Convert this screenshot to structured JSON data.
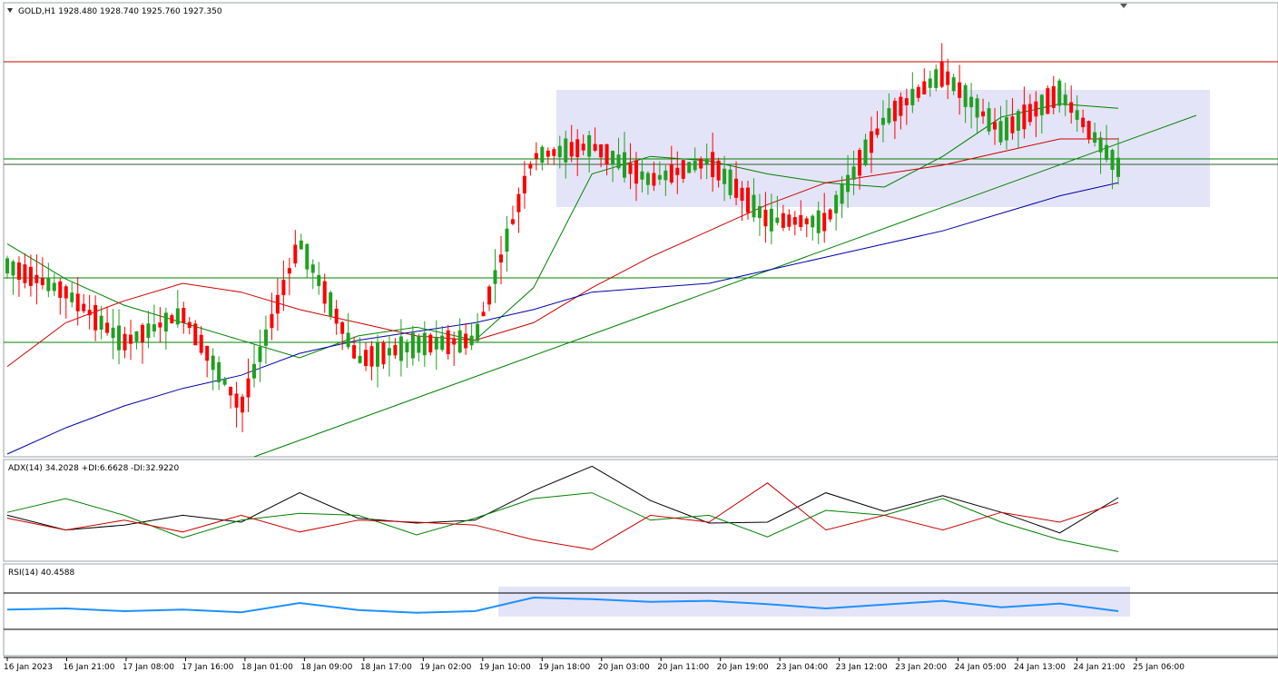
{
  "main_header": "GOLD,H1  1928.480 1928.740 1925.760 1927.350",
  "adx_header": "ADX(14) 34.2028 +DI:6.6628 -DI:32.9220",
  "rsi_header": "RSI(14) 40.4588",
  "time_labels": [
    "16 Jan 2023",
    "16 Jan 21:00",
    "17 Jan 08:00",
    "17 Jan 16:00",
    "18 Jan 01:00",
    "18 Jan 09:00",
    "18 Jan 17:00",
    "19 Jan 02:00",
    "19 Jan 10:00",
    "19 Jan 18:00",
    "20 Jan 03:00",
    "20 Jan 11:00",
    "20 Jan 19:00",
    "23 Jan 04:00",
    "23 Jan 12:00",
    "23 Jan 20:00",
    "24 Jan 05:00",
    "24 Jan 13:00",
    "24 Jan 21:00",
    "25 Jan 06:00"
  ],
  "colors": {
    "bull": "#20a020",
    "bear": "#ff0000",
    "ma_fast": "#008000",
    "ma_mid": "#cc0000",
    "ma_slow": "#0000aa",
    "zone_fill": "#e4e4f8",
    "resistance_line": "#cc0000",
    "support_line": "#008000",
    "trendline": "#008000",
    "adx_main": "#000000",
    "adx_plus_di": "#008000",
    "adx_minus_di": "#cc0000",
    "rsi_line": "#1e90ff"
  },
  "chart_data": [
    {
      "type": "candlestick",
      "symbol": "GOLD",
      "timeframe": "H1",
      "title": "GOLD,H1",
      "last_bar": {
        "open": 1928.48,
        "high": 1928.74,
        "low": 1925.76,
        "close": 1927.35
      },
      "x_categories": [
        "16 Jan 2023",
        "16 Jan 21:00",
        "17 Jan 08:00",
        "17 Jan 16:00",
        "18 Jan 01:00",
        "18 Jan 09:00",
        "18 Jan 17:00",
        "19 Jan 02:00",
        "19 Jan 10:00",
        "19 Jan 18:00",
        "20 Jan 03:00",
        "20 Jan 11:00",
        "20 Jan 19:00",
        "23 Jan 04:00",
        "23 Jan 12:00",
        "23 Jan 20:00",
        "24 Jan 05:00",
        "24 Jan 13:00",
        "24 Jan 21:00",
        "25 Jan 06:00"
      ],
      "series": [
        {
          "kind": "ohlc",
          "values": [
            {
              "t": "16 Jan 2023",
              "o": 0.55,
              "c": 0.59,
              "h": 0.52,
              "l": 0.62
            },
            {
              "t": "16 Jan 21:00",
              "o": 0.58,
              "c": 0.68,
              "h": 0.55,
              "l": 0.72
            },
            {
              "t": "17 Jan 08:00",
              "o": 0.7,
              "c": 0.79,
              "h": 0.66,
              "l": 0.82
            },
            {
              "t": "17 Jan 16:00",
              "o": 0.64,
              "c": 0.72,
              "h": 0.57,
              "l": 0.78
            },
            {
              "t": "18 Jan 01:00",
              "o": 0.85,
              "c": 0.94,
              "h": 0.82,
              "l": 0.96
            },
            {
              "t": "18 Jan 09:00",
              "o": 0.59,
              "c": 0.44,
              "h": 0.39,
              "l": 0.64
            },
            {
              "t": "18 Jan 17:00",
              "o": 0.75,
              "c": 0.82,
              "h": 0.72,
              "l": 0.86
            },
            {
              "t": "19 Jan 02:00",
              "o": 0.73,
              "c": 0.77,
              "h": 0.71,
              "l": 0.85
            },
            {
              "t": "19 Jan 10:00",
              "o": 0.76,
              "c": 0.72,
              "h": 0.57,
              "l": 0.78
            },
            {
              "t": "19 Jan 18:00",
              "o": 0.4,
              "c": 0.24,
              "h": 0.19,
              "l": 0.43
            },
            {
              "t": "20 Jan 03:00",
              "o": 0.25,
              "c": 0.34,
              "h": 0.22,
              "l": 0.37
            },
            {
              "t": "20 Jan 11:00",
              "o": 0.33,
              "c": 0.42,
              "h": 0.3,
              "l": 0.49
            },
            {
              "t": "20 Jan 19:00",
              "o": 0.36,
              "c": 0.3,
              "h": 0.2,
              "l": 0.4
            },
            {
              "t": "23 Jan 04:00",
              "o": 0.43,
              "c": 0.5,
              "h": 0.36,
              "l": 0.53
            },
            {
              "t": "23 Jan 12:00",
              "o": 0.37,
              "c": 0.57,
              "h": 0.34,
              "l": 0.65
            },
            {
              "t": "23 Jan 20:00",
              "o": 0.28,
              "c": 0.19,
              "h": 0.15,
              "l": 0.3
            },
            {
              "t": "24 Jan 05:00",
              "o": 0.1,
              "c": 0.16,
              "h": 0.05,
              "l": 0.2
            },
            {
              "t": "24 Jan 13:00",
              "o": 0.33,
              "c": 0.2,
              "h": 0.17,
              "l": 0.56
            },
            {
              "t": "24 Jan 21:00",
              "o": 0.15,
              "c": 0.2,
              "h": 0.1,
              "l": 0.23
            },
            {
              "t": "25 Jan 06:00",
              "o": 0.33,
              "c": 0.36,
              "h": 0.32,
              "l": 0.39
            }
          ]
        },
        {
          "kind": "ma_fast",
          "values": [
            0.52,
            0.6,
            0.66,
            0.7,
            0.74,
            0.78,
            0.73,
            0.71,
            0.74,
            0.62,
            0.36,
            0.32,
            0.33,
            0.36,
            0.38,
            0.39,
            0.32,
            0.23,
            0.2,
            0.21
          ]
        },
        {
          "kind": "ma_mid",
          "values": [
            0.8,
            0.7,
            0.65,
            0.61,
            0.63,
            0.67,
            0.7,
            0.73,
            0.74,
            0.7,
            0.62,
            0.55,
            0.49,
            0.43,
            0.38,
            0.36,
            0.34,
            0.31,
            0.28,
            0.28
          ]
        },
        {
          "kind": "ma_slow",
          "values": [
            1.0,
            0.94,
            0.89,
            0.85,
            0.82,
            0.77,
            0.74,
            0.72,
            0.7,
            0.67,
            0.63,
            0.62,
            0.61,
            0.58,
            0.55,
            0.52,
            0.49,
            0.45,
            0.41,
            0.38
          ]
        }
      ]
    },
    {
      "type": "line",
      "indicator": "ADX",
      "period": 14,
      "adx": 34.2028,
      "plus_di": 6.6628,
      "minus_di": 32.922,
      "series": [
        {
          "kind": "adx",
          "values": [
            0.55,
            0.7,
            0.65,
            0.55,
            0.62,
            0.32,
            0.58,
            0.63,
            0.6,
            0.3,
            0.05,
            0.4,
            0.63,
            0.62,
            0.32,
            0.51,
            0.35,
            0.52,
            0.73,
            0.37
          ]
        },
        {
          "kind": "plus_di",
          "values": [
            0.52,
            0.38,
            0.55,
            0.78,
            0.6,
            0.53,
            0.55,
            0.75,
            0.58,
            0.38,
            0.32,
            0.6,
            0.55,
            0.77,
            0.5,
            0.55,
            0.38,
            0.62,
            0.8,
            0.92
          ]
        },
        {
          "kind": "minus_di",
          "values": [
            0.58,
            0.7,
            0.6,
            0.72,
            0.55,
            0.72,
            0.6,
            0.62,
            0.65,
            0.8,
            0.9,
            0.55,
            0.62,
            0.22,
            0.7,
            0.55,
            0.7,
            0.52,
            0.62,
            0.42
          ]
        }
      ]
    },
    {
      "type": "line",
      "indicator": "RSI",
      "period": 14,
      "value": 40.4588,
      "series": [
        {
          "kind": "rsi",
          "values": [
            0.52,
            0.5,
            0.55,
            0.52,
            0.57,
            0.4,
            0.53,
            0.58,
            0.55,
            0.3,
            0.33,
            0.38,
            0.36,
            0.42,
            0.5,
            0.43,
            0.36,
            0.48,
            0.41,
            0.55
          ]
        }
      ]
    }
  ]
}
